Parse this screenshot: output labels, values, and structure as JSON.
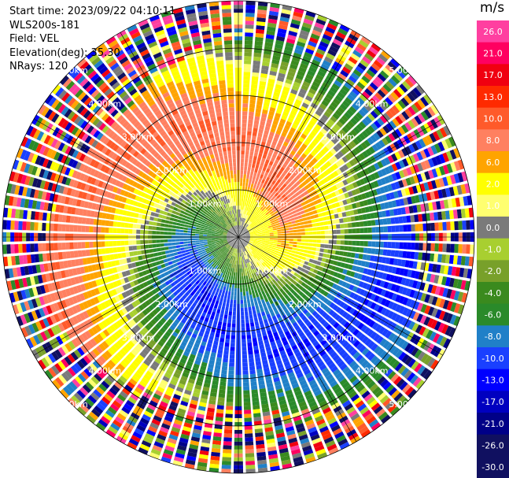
{
  "header": {
    "start_time": "Start time: 2023/09/22 04:10:11",
    "site": "WLS200s-181",
    "field": "Field: VEL",
    "elevation": "Elevation(deg): 35.30",
    "nrays": "NRays: 120"
  },
  "colorbar": {
    "unit": "m/s",
    "bins": [
      {
        "label": "26.0",
        "color": "#ff3fa0"
      },
      {
        "label": "21.0",
        "color": "#ff0060"
      },
      {
        "label": "17.0",
        "color": "#f00010"
      },
      {
        "label": "13.0",
        "color": "#ff2a00"
      },
      {
        "label": "10.0",
        "color": "#ff5a2a"
      },
      {
        "label": "8.0",
        "color": "#ff8060"
      },
      {
        "label": "6.0",
        "color": "#ffa400"
      },
      {
        "label": "2.0",
        "color": "#ffff00"
      },
      {
        "label": "1.0",
        "color": "#ffff70"
      },
      {
        "label": "0.0",
        "color": "#7a7a7a"
      },
      {
        "label": "-1.0",
        "color": "#a8cf30"
      },
      {
        "label": "-2.0",
        "color": "#78a02a"
      },
      {
        "label": "-4.0",
        "color": "#3a8a1e"
      },
      {
        "label": "-6.0",
        "color": "#2a8a2a"
      },
      {
        "label": "-8.0",
        "color": "#2080c8"
      },
      {
        "label": "-10.0",
        "color": "#1a40ff"
      },
      {
        "label": "-13.0",
        "color": "#0000ff"
      },
      {
        "label": "-17.0",
        "color": "#0000c0"
      },
      {
        "label": "-21.0",
        "color": "#000088"
      },
      {
        "label": "-26.0",
        "color": "#101060"
      },
      {
        "label": "-30.0",
        "color": "#101060"
      }
    ]
  },
  "range_rings": [
    {
      "value": 1,
      "label": "1.00km"
    },
    {
      "value": 2,
      "label": "2.00km"
    },
    {
      "value": 3,
      "label": "3.00km"
    },
    {
      "value": 4,
      "label": "4.00km"
    },
    {
      "value": 5,
      "label": "5.00km"
    }
  ],
  "ppi": {
    "nrays": 120,
    "ngates": 60,
    "max_range_km": 5.0
  }
}
